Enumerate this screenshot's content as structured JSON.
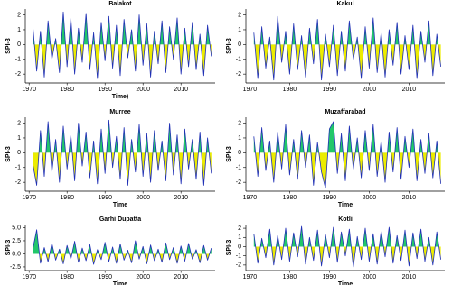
{
  "chart_data": [
    {
      "type": "line",
      "title": "Balakot",
      "x_label": "Time)",
      "y_label": "SPI-3",
      "color": "#1f2fb5",
      "positive_fill": "#22c76a",
      "negative_fill": "#ecec00",
      "xlim": [
        1969,
        2019
      ],
      "xticks": [
        1970,
        1980,
        1990,
        2000,
        2010
      ],
      "ylim": [
        -2.6,
        2.4
      ],
      "yticks": [
        -2,
        -1,
        0,
        1,
        2
      ],
      "x": [
        1971,
        1972,
        1973,
        1974,
        1975,
        1976,
        1977,
        1978,
        1979,
        1980,
        1981,
        1982,
        1983,
        1984,
        1985,
        1986,
        1987,
        1988,
        1989,
        1990,
        1991,
        1992,
        1993,
        1994,
        1995,
        1996,
        1997,
        1998,
        1999,
        2000,
        2001,
        2002,
        2003,
        2004,
        2005,
        2006,
        2007,
        2008,
        2009,
        2010,
        2011,
        2012,
        2013,
        2014,
        2015,
        2016,
        2017,
        2018
      ],
      "values": [
        1.2,
        -1.8,
        0.9,
        -2.2,
        1.6,
        -1.0,
        0.4,
        -1.9,
        2.2,
        -1.5,
        1.8,
        -2.0,
        1.1,
        -1.2,
        2.1,
        -1.7,
        0.8,
        -2.3,
        1.5,
        -1.1,
        1.9,
        -1.6,
        1.3,
        -2.1,
        1.7,
        -0.9,
        1.0,
        -1.8,
        2.0,
        -1.4,
        1.4,
        -2.2,
        0.9,
        -1.3,
        1.6,
        -1.9,
        1.2,
        -1.0,
        1.8,
        -2.0,
        1.1,
        -1.5,
        1.5,
        -1.7,
        0.7,
        -2.1,
        1.3,
        -0.8
      ]
    },
    {
      "type": "line",
      "title": "Kakul",
      "y_label": "SPI-3",
      "color": "#1f2fb5",
      "positive_fill": "#22c76a",
      "negative_fill": "#ecec00",
      "xlim": [
        1969,
        2019
      ],
      "xticks": [
        1970,
        1980,
        1990,
        2000,
        2010
      ],
      "ylim": [
        -2.6,
        2.4
      ],
      "yticks": [
        -2,
        -1,
        0,
        1,
        2
      ],
      "x": [
        1971,
        1972,
        1973,
        1974,
        1975,
        1976,
        1977,
        1978,
        1979,
        1980,
        1981,
        1982,
        1983,
        1984,
        1985,
        1986,
        1987,
        1988,
        1989,
        1990,
        1991,
        1992,
        1993,
        1994,
        1995,
        1996,
        1997,
        1998,
        1999,
        2000,
        2001,
        2002,
        2003,
        2004,
        2005,
        2006,
        2007,
        2008,
        2009,
        2010,
        2011,
        2012,
        2013,
        2014,
        2015,
        2016,
        2017,
        2018
      ],
      "values": [
        0.8,
        -2.3,
        1.2,
        -1.6,
        0.5,
        -2.4,
        1.9,
        -1.2,
        0.9,
        -2.0,
        1.4,
        -1.7,
        0.6,
        -2.2,
        1.1,
        -1.3,
        1.7,
        -2.4,
        0.7,
        -1.5,
        1.3,
        -2.1,
        0.9,
        -1.8,
        1.6,
        -1.0,
        0.5,
        -2.3,
        1.2,
        -1.6,
        1.8,
        -1.9,
        0.8,
        -2.2,
        1.0,
        -1.4,
        1.5,
        -2.0,
        0.6,
        -1.7,
        1.3,
        -2.3,
        0.9,
        -1.2,
        1.6,
        -2.1,
        0.7,
        -1.5
      ]
    },
    {
      "type": "line",
      "title": "Murree",
      "x_label": "Time",
      "y_label": "SPI-3",
      "color": "#1f2fb5",
      "positive_fill": "#22c76a",
      "negative_fill": "#ecec00",
      "xlim": [
        1969,
        2019
      ],
      "xticks": [
        1970,
        1980,
        1990,
        2000,
        2010
      ],
      "ylim": [
        -2.6,
        2.4
      ],
      "yticks": [
        -2,
        -1,
        0,
        1,
        2
      ],
      "x": [
        1971,
        1972,
        1973,
        1974,
        1975,
        1976,
        1977,
        1978,
        1979,
        1980,
        1981,
        1982,
        1983,
        1984,
        1985,
        1986,
        1987,
        1988,
        1989,
        1990,
        1991,
        1992,
        1993,
        1994,
        1995,
        1996,
        1997,
        1998,
        1999,
        2000,
        2001,
        2002,
        2003,
        2004,
        2005,
        2006,
        2007,
        2008,
        2009,
        2010,
        2011,
        2012,
        2013,
        2014,
        2015,
        2016,
        2017,
        2018
      ],
      "values": [
        -0.8,
        -2.2,
        1.5,
        -1.6,
        2.1,
        -1.3,
        0.9,
        -2.0,
        1.8,
        -1.1,
        1.2,
        -1.9,
        2.0,
        -0.9,
        1.4,
        -1.7,
        0.8,
        -2.1,
        1.6,
        -1.4,
        2.2,
        -1.0,
        1.1,
        -1.8,
        1.7,
        -2.2,
        0.9,
        -1.3,
        1.9,
        -1.6,
        1.3,
        -2.0,
        1.5,
        -1.2,
        0.8,
        -1.9,
        2.0,
        -1.5,
        1.2,
        -2.1,
        1.6,
        -1.1,
        0.9,
        -1.8,
        1.4,
        -2.2,
        1.0,
        -1.4
      ]
    },
    {
      "type": "line",
      "title": "Muzaffarabad",
      "x_label": "Time",
      "y_label": "SPI-3",
      "color": "#1f2fb5",
      "positive_fill": "#22c76a",
      "negative_fill": "#ecec00",
      "xlim": [
        1969,
        2019
      ],
      "xticks": [
        1970,
        1980,
        1990,
        2000,
        2010
      ],
      "ylim": [
        -2.6,
        2.4
      ],
      "yticks": [
        -2,
        -1,
        0,
        1,
        2
      ],
      "x": [
        1971,
        1972,
        1973,
        1974,
        1975,
        1976,
        1977,
        1978,
        1979,
        1980,
        1981,
        1982,
        1983,
        1984,
        1985,
        1986,
        1987,
        1988,
        1989,
        1990,
        1991,
        1992,
        1993,
        1994,
        1995,
        1996,
        1997,
        1998,
        1999,
        2000,
        2001,
        2002,
        2003,
        2004,
        2005,
        2006,
        2007,
        2008,
        2009,
        2010,
        2011,
        2012,
        2013,
        2014,
        2015,
        2016,
        2017,
        2018
      ],
      "values": [
        1.1,
        -1.6,
        1.7,
        -1.2,
        0.8,
        -2.0,
        1.4,
        -1.1,
        1.9,
        -1.5,
        0.9,
        -1.8,
        1.5,
        -1.0,
        1.2,
        -2.2,
        0.7,
        -1.3,
        -2.4,
        1.6,
        2.1,
        -1.4,
        1.3,
        -1.9,
        1.8,
        -1.1,
        1.0,
        -1.7,
        1.5,
        -1.2,
        1.9,
        -1.6,
        0.8,
        -2.0,
        1.4,
        -1.3,
        1.7,
        -1.8,
        1.1,
        -1.0,
        1.6,
        -1.9,
        0.9,
        -1.4,
        1.3,
        -1.7,
        0.8,
        -2.1
      ]
    },
    {
      "type": "line",
      "title": "Garhi Dupatta",
      "x_label": "Time",
      "y_label": "SPI-3",
      "color": "#1f2fb5",
      "positive_fill": "#22c76a",
      "negative_fill": "#ecec00",
      "xlim": [
        1969,
        2019
      ],
      "xticks": [
        1970,
        1980,
        1990,
        2000,
        2010
      ],
      "ylim": [
        -3.2,
        5.6
      ],
      "yticks": [
        -2.5,
        {
          "value": 0,
          "label": "0.0"
        },
        2.5,
        {
          "value": 5,
          "label": "5.0"
        }
      ],
      "x": [
        1971,
        1972,
        1973,
        1974,
        1975,
        1976,
        1977,
        1978,
        1979,
        1980,
        1981,
        1982,
        1983,
        1984,
        1985,
        1986,
        1987,
        1988,
        1989,
        1990,
        1991,
        1992,
        1993,
        1994,
        1995,
        1996,
        1997,
        1998,
        1999,
        2000,
        2001,
        2002,
        2003,
        2004,
        2005,
        2006,
        2007,
        2008,
        2009,
        2010,
        2011,
        2012,
        2013,
        2014,
        2015,
        2016,
        2017,
        2018
      ],
      "values": [
        1.0,
        4.6,
        -1.8,
        1.2,
        -1.5,
        2.0,
        -1.2,
        0.9,
        -1.9,
        1.6,
        -1.0,
        2.4,
        -1.6,
        1.1,
        -1.3,
        1.8,
        -2.0,
        0.8,
        -1.1,
        2.2,
        -1.5,
        1.3,
        -1.8,
        1.9,
        -1.2,
        0.7,
        -1.7,
        2.5,
        -1.0,
        1.4,
        -1.9,
        1.7,
        -1.3,
        0.9,
        -1.6,
        2.1,
        -1.1,
        1.2,
        -1.8,
        1.5,
        -1.4,
        2.0,
        -1.0,
        0.8,
        -1.7,
        1.6,
        -1.2,
        1.1
      ]
    },
    {
      "type": "line",
      "title": "Kotli",
      "x_label": "Time",
      "y_label": "SPI-3",
      "color": "#1f2fb5",
      "positive_fill": "#22c76a",
      "negative_fill": "#ecec00",
      "xlim": [
        1969,
        2019
      ],
      "xticks": [
        1970,
        1980,
        1990,
        2000,
        2010
      ],
      "ylim": [
        -2.6,
        2.4
      ],
      "yticks": [
        -2,
        -1,
        0,
        1,
        2
      ],
      "x": [
        1971,
        1972,
        1973,
        1974,
        1975,
        1976,
        1977,
        1978,
        1979,
        1980,
        1981,
        1982,
        1983,
        1984,
        1985,
        1986,
        1987,
        1988,
        1989,
        1990,
        1991,
        1992,
        1993,
        1994,
        1995,
        1996,
        1997,
        1998,
        1999,
        2000,
        2001,
        2002,
        2003,
        2004,
        2005,
        2006,
        2007,
        2008,
        2009,
        2010,
        2011,
        2012,
        2013,
        2014,
        2015,
        2016,
        2017,
        2018
      ],
      "values": [
        1.4,
        -1.8,
        0.9,
        -1.2,
        1.9,
        -2.0,
        1.2,
        -1.4,
        2.0,
        -1.6,
        1.5,
        -1.1,
        2.2,
        -1.9,
        1.0,
        -1.5,
        1.8,
        -2.1,
        1.3,
        -1.2,
        2.1,
        -1.7,
        1.6,
        -1.0,
        1.9,
        -2.2,
        1.1,
        -1.4,
        2.0,
        -1.6,
        1.4,
        -1.9,
        1.7,
        -1.1,
        2.1,
        -1.8,
        1.2,
        -1.5,
        1.8,
        -2.1,
        1.5,
        -1.3,
        1.9,
        -1.6,
        1.0,
        -2.0,
        1.6,
        -1.4
      ]
    }
  ]
}
